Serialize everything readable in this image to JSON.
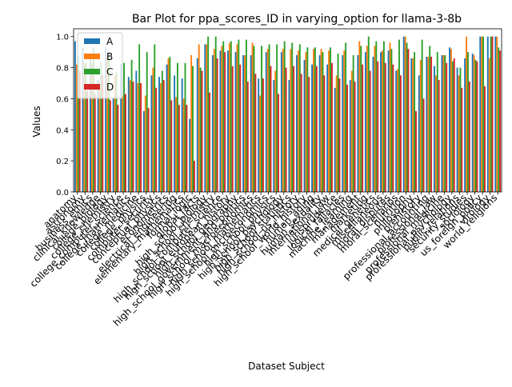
{
  "chart_data": {
    "type": "bar",
    "title": "Bar Plot for ppa_scores_ID in varying_option for llama-3-8b",
    "xlabel": "Dataset Subject",
    "ylabel": "Values",
    "ylim": [
      0,
      1.05
    ],
    "yticks": [
      "0.0",
      "0.2",
      "0.4",
      "0.6",
      "0.8",
      "1.0"
    ],
    "grid": false,
    "legend_position": "top-left",
    "categories": [
      "anatomy",
      "astronomy",
      "business_ethics",
      "clinical_knowledge",
      "college_biology",
      "college_chemistry",
      "college_computer_science",
      "college_mathematics",
      "college_medicine",
      "college_physics",
      "computer_security",
      "conceptual_physics",
      "econometrics",
      "electrical_engineering",
      "elementary_mathematics",
      "formal_logic",
      "global_facts",
      "high_school_biology",
      "high_school_chemistry",
      "high_school_computer_science",
      "high_school_european_history",
      "high_school_geography",
      "high_school_government_and_politics",
      "high_school_macroeconomics",
      "high_school_mathematics",
      "high_school_microeconomics",
      "high_school_physics",
      "high_school_psychology",
      "high_school_statistics",
      "high_school_us_history",
      "high_school_world_history",
      "human_aging",
      "human_sexuality",
      "international_law",
      "jurisprudence",
      "logical_fallacies",
      "machine_learning",
      "management",
      "marketing",
      "medical_genetics",
      "miscellaneous",
      "moral_disputes",
      "moral_scenarios",
      "nutrition",
      "philosophy",
      "prehistory",
      "professional_accounting",
      "professional_law",
      "professional_medicine",
      "professional_psychology",
      "public_relations",
      "security_studies",
      "sociology",
      "us_foreign_policy",
      "virology",
      "world_religions"
    ],
    "series": [
      {
        "name": "A",
        "color": "#1f77b4",
        "values": [
          0.97,
          0.93,
          0.88,
          0.72,
          0.93,
          0.6,
          0.82,
          0.74,
          0.78,
          0.52,
          0.75,
          0.74,
          0.82,
          0.75,
          0.73,
          0.47,
          0.86,
          0.95,
          0.88,
          0.91,
          0.91,
          0.9,
          0.88,
          0.88,
          0.73,
          0.9,
          0.72,
          0.9,
          0.72,
          0.88,
          0.85,
          0.82,
          0.88,
          0.82,
          0.67,
          0.88,
          0.72,
          0.88,
          0.9,
          0.87,
          0.9,
          0.91,
          0.78,
          1.0,
          0.86,
          0.75,
          0.87,
          0.81,
          0.88,
          0.93,
          0.8,
          0.86,
          0.89,
          1.0,
          1.0,
          1.0
        ]
      },
      {
        "name": "B",
        "color": "#ff7f0e",
        "values": [
          0.82,
          0.83,
          0.83,
          0.7,
          0.87,
          0.75,
          0.62,
          0.72,
          0.7,
          0.62,
          0.8,
          0.7,
          0.86,
          0.61,
          0.6,
          0.88,
          0.95,
          0.95,
          0.92,
          0.94,
          0.96,
          0.95,
          0.88,
          0.96,
          0.62,
          0.92,
          0.78,
          0.92,
          0.92,
          0.91,
          0.9,
          0.92,
          0.92,
          0.91,
          0.75,
          0.91,
          0.78,
          0.97,
          0.94,
          0.94,
          0.91,
          0.96,
          0.79,
          1.0,
          0.86,
          0.85,
          0.87,
          0.75,
          0.88,
          0.92,
          0.75,
          1.0,
          0.88,
          1.0,
          0.86,
          1.0
        ]
      },
      {
        "name": "C",
        "color": "#2ca02c",
        "values": [
          0.88,
          0.83,
          0.93,
          0.83,
          0.9,
          0.77,
          0.83,
          0.85,
          0.95,
          0.9,
          0.95,
          0.78,
          0.87,
          0.83,
          0.83,
          0.81,
          0.8,
          1.0,
          1.0,
          0.97,
          0.97,
          0.98,
          0.98,
          0.94,
          0.94,
          0.95,
          0.95,
          0.97,
          0.96,
          0.95,
          0.93,
          0.93,
          0.9,
          0.93,
          0.89,
          0.96,
          0.88,
          0.94,
          1.0,
          0.97,
          0.97,
          0.92,
          0.98,
          0.96,
          0.9,
          0.98,
          0.94,
          0.9,
          0.88,
          0.84,
          0.8,
          0.9,
          0.85,
          1.0,
          1.0,
          0.93
        ]
      },
      {
        "name": "D",
        "color": "#d62728",
        "values": [
          0.78,
          0.65,
          0.63,
          0.75,
          0.59,
          0.56,
          0.63,
          0.71,
          0.7,
          0.54,
          0.67,
          0.72,
          0.59,
          0.56,
          0.56,
          0.2,
          0.78,
          0.64,
          0.86,
          0.9,
          0.81,
          0.82,
          0.71,
          0.76,
          0.73,
          0.81,
          0.63,
          0.8,
          0.81,
          0.76,
          0.74,
          0.81,
          0.75,
          0.83,
          0.73,
          0.69,
          0.71,
          0.82,
          0.78,
          0.84,
          0.83,
          0.82,
          0.75,
          0.92,
          0.52,
          0.6,
          0.87,
          0.72,
          0.83,
          0.86,
          0.67,
          0.71,
          0.84,
          0.68,
          1.0,
          0.91
        ]
      }
    ]
  }
}
